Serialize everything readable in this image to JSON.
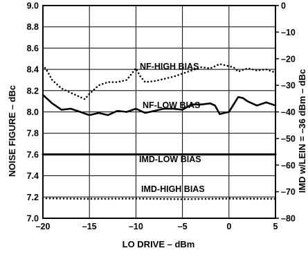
{
  "chart_data": {
    "type": "line",
    "title": "",
    "xlabel": "LO DRIVE – dBm",
    "ylabel": "NOISE FIGURE – dBc",
    "y2label": "IMD w/LEIN = –36 dBm – dBc",
    "xlim": [
      -20,
      5
    ],
    "ylim": [
      7.0,
      9.0
    ],
    "y2lim": [
      -80,
      0
    ],
    "grid": true,
    "x_ticks": [
      "–20",
      "–15",
      "–10",
      "–5",
      "0",
      "5"
    ],
    "y_ticks": [
      "7.0",
      "7.2",
      "7.4",
      "7.6",
      "7.8",
      "8.0",
      "8.2",
      "8.4",
      "8.6",
      "8.8",
      "9.0"
    ],
    "y2_ticks": [
      "–80",
      "–70",
      "–60",
      "–50",
      "–40",
      "–30",
      "–20",
      "–10",
      "0"
    ],
    "series": [
      {
        "name": "NF-HIGH BIAS",
        "axis": "left",
        "style": "dotted",
        "x": [
          -20,
          -19.5,
          -19,
          -18,
          -17,
          -16,
          -15.5,
          -15,
          -14,
          -13,
          -12,
          -11,
          -10,
          -9.5,
          -9,
          -8,
          -7,
          -6,
          -5,
          -4,
          -3,
          -2,
          -1,
          0,
          0.5,
          1,
          2,
          3,
          4,
          5
        ],
        "y": [
          8.44,
          8.38,
          8.3,
          8.22,
          8.18,
          8.14,
          8.12,
          8.17,
          8.25,
          8.28,
          8.28,
          8.3,
          8.41,
          8.33,
          8.28,
          8.29,
          8.31,
          8.33,
          8.36,
          8.39,
          8.42,
          8.41,
          8.45,
          8.43,
          8.42,
          8.38,
          8.41,
          8.39,
          8.4,
          8.37
        ]
      },
      {
        "name": "NF-LOW BIAS",
        "axis": "left",
        "style": "solid",
        "x": [
          -20,
          -19,
          -18,
          -17,
          -16,
          -15,
          -14,
          -13,
          -12,
          -11,
          -10,
          -9,
          -8,
          -7,
          -6,
          -5,
          -4,
          -3,
          -2,
          -1.5,
          -1,
          0,
          0.5,
          1,
          1.5,
          2,
          3,
          4,
          5
        ],
        "y": [
          8.16,
          8.08,
          8.02,
          8.03,
          8.0,
          7.97,
          7.99,
          7.97,
          8.01,
          8.0,
          8.03,
          7.99,
          8.01,
          8.03,
          8.03,
          8.02,
          8.07,
          8.07,
          8.08,
          8.06,
          7.98,
          8.0,
          8.07,
          8.14,
          8.13,
          8.1,
          8.06,
          8.09,
          8.06
        ]
      },
      {
        "name": "IMD-LOW BIAS",
        "axis": "right",
        "style": "solid",
        "x": [
          -20,
          -15,
          -10,
          -5,
          0,
          5
        ],
        "y": [
          -56,
          -56,
          -56,
          -56,
          -56,
          -56
        ]
      },
      {
        "name": "IMD-HIGH BIAS",
        "axis": "right",
        "style": "dotted",
        "x": [
          -20,
          -15,
          -10,
          -5,
          0,
          5
        ],
        "y": [
          -72.5,
          -72.7,
          -72.6,
          -72.8,
          -72.6,
          -72.7
        ]
      }
    ]
  }
}
